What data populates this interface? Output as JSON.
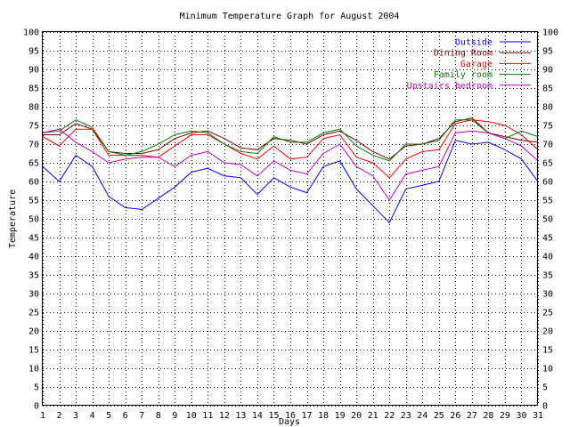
{
  "chart_data": {
    "type": "line",
    "title": "Minimum Temperature Graph for August 2004",
    "xlabel": "Days",
    "ylabel": "Temperature",
    "xlim": [
      1,
      31
    ],
    "ylim": [
      0,
      100
    ],
    "x": [
      1,
      2,
      3,
      4,
      5,
      6,
      7,
      8,
      9,
      10,
      11,
      12,
      13,
      14,
      15,
      16,
      17,
      18,
      19,
      20,
      21,
      22,
      23,
      24,
      25,
      26,
      27,
      28,
      29,
      30,
      31
    ],
    "x_ticks": [
      "1",
      "2",
      "3",
      "4",
      "5",
      "6",
      "7",
      "8",
      "9",
      "10",
      "11",
      "12",
      "13",
      "14",
      "15",
      "16",
      "17",
      "18",
      "19",
      "20",
      "21",
      "22",
      "23",
      "24",
      "25",
      "26",
      "27",
      "28",
      "29",
      "30",
      "31"
    ],
    "y_ticks": [
      "0",
      "5",
      "10",
      "15",
      "20",
      "25",
      "30",
      "35",
      "40",
      "45",
      "50",
      "55",
      "60",
      "65",
      "70",
      "75",
      "80",
      "85",
      "90",
      "95",
      "100"
    ],
    "grid": true,
    "legend_position": "top-right",
    "series": [
      {
        "name": "Outside",
        "color": "#0000ff",
        "values": [
          64,
          60,
          67,
          64,
          56,
          53,
          52.5,
          55.5,
          58.5,
          62.5,
          63.5,
          61.5,
          61,
          56.5,
          61,
          58.5,
          57,
          64,
          65.5,
          58,
          53.5,
          49,
          58,
          59,
          60,
          71,
          70,
          70.5,
          68.5,
          66,
          60
        ]
      },
      {
        "name": "Dining Room",
        "color": "#800000",
        "values": [
          72.5,
          72.5,
          75.5,
          74,
          68,
          67.5,
          67.5,
          68.5,
          71.5,
          73,
          73.5,
          71.5,
          69,
          68.5,
          71.5,
          71,
          70,
          72.5,
          73.5,
          71,
          68,
          66,
          69.5,
          70,
          71.5,
          76,
          77,
          73,
          72,
          71,
          70.5
        ]
      },
      {
        "name": "Garage",
        "color": "#ff0000",
        "values": [
          72,
          69.5,
          74,
          74,
          67,
          67,
          67,
          66.5,
          69.5,
          72.5,
          72.5,
          70,
          67.5,
          66,
          69.5,
          66,
          66.5,
          71.5,
          72.5,
          66.5,
          65,
          61,
          66,
          68,
          68.5,
          75.5,
          76.5,
          76,
          75,
          72.5,
          68.5
        ]
      },
      {
        "name": "Family room",
        "color": "#008000",
        "values": [
          73,
          73.5,
          76.5,
          74.5,
          68,
          67,
          68,
          70,
          72.5,
          73.5,
          73,
          70,
          68,
          67.5,
          72,
          70.5,
          70.5,
          73,
          74,
          69.5,
          67,
          65.5,
          70,
          70,
          71,
          76.5,
          76.5,
          73,
          71.5,
          73.5,
          72
        ]
      },
      {
        "name": "Upstairs bedroom",
        "color": "#c000c0",
        "values": [
          73,
          74,
          70.5,
          68,
          65,
          66,
          66.5,
          66.5,
          64,
          67,
          68,
          65,
          64.5,
          61.5,
          65.5,
          63,
          62,
          67.5,
          70,
          64,
          61.5,
          55,
          62,
          63,
          64,
          73,
          73.5,
          73,
          71.5,
          69.5,
          65.5
        ]
      }
    ]
  }
}
